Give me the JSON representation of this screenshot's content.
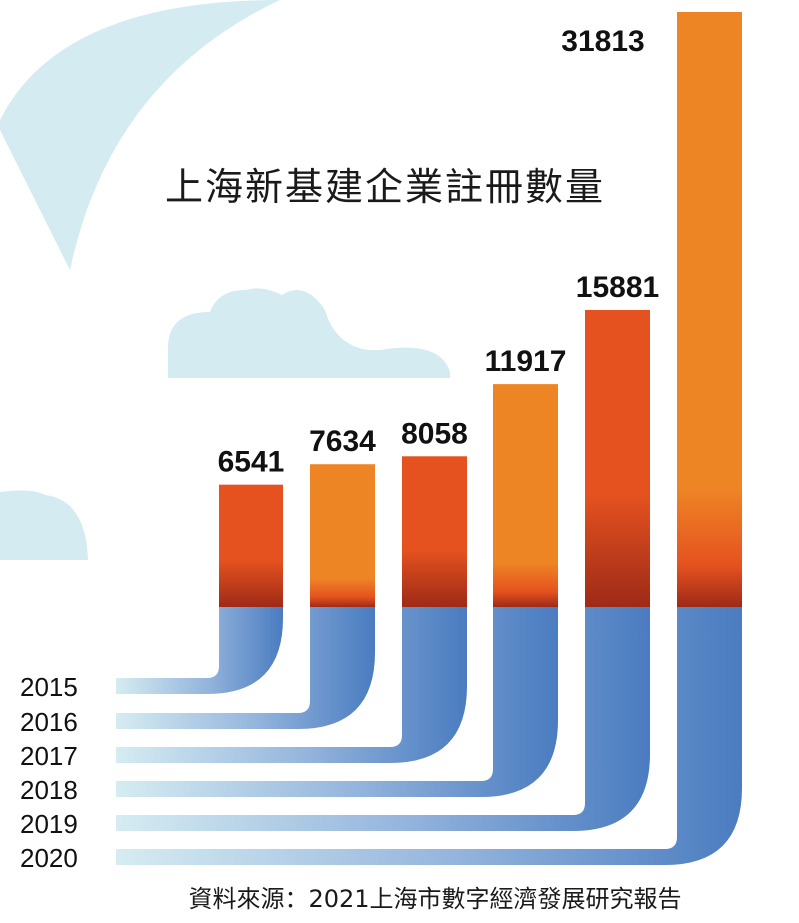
{
  "chart_data": {
    "type": "bar",
    "title": "上海新基建企業註冊數量",
    "categories": [
      "2015",
      "2016",
      "2017",
      "2018",
      "2019",
      "2020"
    ],
    "values": [
      6541,
      7634,
      8058,
      11917,
      15881,
      31813
    ],
    "value_labels": [
      "6541",
      "7634",
      "8058",
      "11917",
      "15881",
      "31813"
    ],
    "xlabel": "",
    "ylabel": "",
    "ylim": [
      0,
      31813
    ],
    "grid": false,
    "source": "資料來源：2021上海市數字經濟發展研究報告"
  },
  "colors": {
    "bar_red": "#e5521f",
    "bar_orange": "#ee8525",
    "bar_dark": "#9e2a17",
    "bar_base_blue": "#4a7cc0",
    "ribbon_light": "#d6ecf2",
    "ribbon_blue": "#4a7cc0",
    "background_shapes": "#d3ebf1"
  }
}
